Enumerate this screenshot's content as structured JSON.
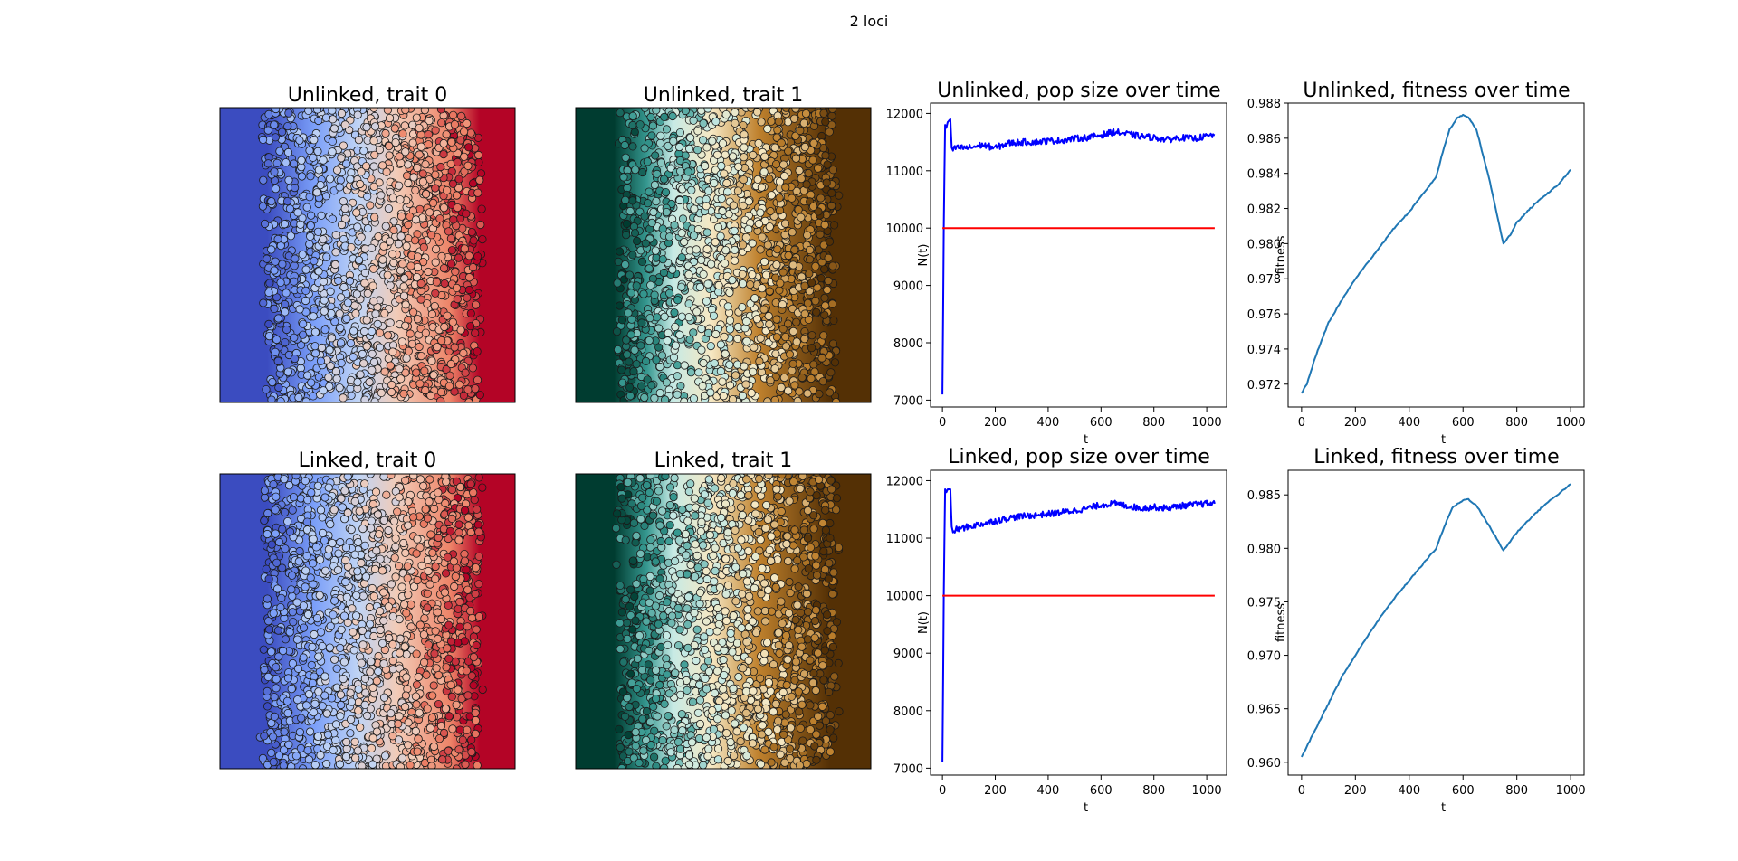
{
  "figure": {
    "suptitle": "2 loci"
  },
  "colors": {
    "coolwarm": [
      "#3b4cc0",
      "#7b9ff9",
      "#c0d4f5",
      "#f2cbb7",
      "#ee8468",
      "#b40426"
    ],
    "brbg": [
      "#003c30",
      "#35978f",
      "#c7eae5",
      "#f6e8c3",
      "#bf812d",
      "#543005"
    ],
    "pop_line": "#0000ff",
    "capacity_line": "#ff0000",
    "fitness_line": "#1f77b4"
  },
  "chart_data": [
    {
      "id": "unlinked-trait0",
      "type": "heatmap",
      "title": "Unlinked, trait 0",
      "colormap": "coolwarm",
      "xlabel": "",
      "ylabel": ""
    },
    {
      "id": "unlinked-trait1",
      "type": "heatmap",
      "title": "Unlinked, trait 1",
      "colormap": "brbg",
      "xlabel": "",
      "ylabel": ""
    },
    {
      "id": "unlinked-pop",
      "type": "line",
      "title": "Unlinked, pop size over time",
      "xlabel": "t",
      "ylabel": "N(t)",
      "xlim": [
        -45,
        1075
      ],
      "ylim": [
        6880,
        12180
      ],
      "xticks": [
        "0",
        "200",
        "400",
        "600",
        "800",
        "1000"
      ],
      "xtick_values": [
        0,
        200,
        400,
        600,
        800,
        1000
      ],
      "yticks": [
        "7000",
        "8000",
        "9000",
        "10000",
        "11000",
        "12000"
      ],
      "ytick_values": [
        7000,
        8000,
        9000,
        10000,
        11000,
        12000
      ],
      "series": [
        {
          "color": "#0000ff",
          "x": [
            0,
            5,
            10,
            15,
            20,
            30,
            35,
            40,
            50,
            100,
            150,
            200,
            250,
            300,
            350,
            400,
            450,
            500,
            550,
            600,
            650,
            700,
            750,
            800,
            850,
            900,
            950,
            1000,
            1030
          ],
          "y": [
            7100,
            10000,
            11800,
            11750,
            11850,
            11900,
            11400,
            11350,
            11400,
            11400,
            11450,
            11400,
            11480,
            11500,
            11500,
            11520,
            11530,
            11560,
            11580,
            11620,
            11680,
            11640,
            11600,
            11580,
            11540,
            11580,
            11560,
            11600,
            11620
          ]
        },
        {
          "color": "#ff0000",
          "x": [
            0,
            1030
          ],
          "y": [
            10000,
            10000
          ]
        }
      ]
    },
    {
      "id": "unlinked-fit",
      "type": "line",
      "title": "Unlinked, fitness over time",
      "xlabel": "t",
      "ylabel": "fitness",
      "xlim": [
        -50,
        1050
      ],
      "ylim": [
        0.9707,
        0.988
      ],
      "xticks": [
        "0",
        "200",
        "400",
        "600",
        "800",
        "1000"
      ],
      "xtick_values": [
        0,
        200,
        400,
        600,
        800,
        1000
      ],
      "yticks": [
        "0.972",
        "0.974",
        "0.976",
        "0.978",
        "0.980",
        "0.982",
        "0.984",
        "0.986",
        "0.988"
      ],
      "ytick_values": [
        0.972,
        0.974,
        0.976,
        0.978,
        0.98,
        0.982,
        0.984,
        0.986,
        0.988
      ],
      "series": [
        {
          "color": "#1f77b4",
          "x": [
            0,
            20,
            50,
            100,
            150,
            200,
            250,
            300,
            350,
            400,
            450,
            500,
            530,
            550,
            580,
            600,
            620,
            650,
            700,
            750,
            780,
            800,
            850,
            900,
            950,
            1000
          ],
          "y": [
            0.9715,
            0.972,
            0.9735,
            0.9755,
            0.9768,
            0.978,
            0.979,
            0.98,
            0.981,
            0.9818,
            0.9828,
            0.9838,
            0.9855,
            0.9865,
            0.9872,
            0.9873,
            0.9872,
            0.9865,
            0.9835,
            0.98,
            0.9806,
            0.9812,
            0.982,
            0.9827,
            0.9833,
            0.9842
          ]
        }
      ]
    },
    {
      "id": "linked-trait0",
      "type": "heatmap",
      "title": "Linked, trait 0",
      "colormap": "coolwarm",
      "xlabel": "",
      "ylabel": ""
    },
    {
      "id": "linked-trait1",
      "type": "heatmap",
      "title": "Linked, trait 1",
      "colormap": "brbg",
      "xlabel": "",
      "ylabel": ""
    },
    {
      "id": "linked-pop",
      "type": "line",
      "title": "Linked, pop size over time",
      "xlabel": "t",
      "ylabel": "N(t)",
      "xlim": [
        -45,
        1075
      ],
      "ylim": [
        6880,
        12180
      ],
      "xticks": [
        "0",
        "200",
        "400",
        "600",
        "800",
        "1000"
      ],
      "xtick_values": [
        0,
        200,
        400,
        600,
        800,
        1000
      ],
      "yticks": [
        "7000",
        "8000",
        "9000",
        "10000",
        "11000",
        "12000"
      ],
      "ytick_values": [
        7000,
        8000,
        9000,
        10000,
        11000,
        12000
      ],
      "series": [
        {
          "color": "#0000ff",
          "x": [
            0,
            5,
            10,
            15,
            20,
            30,
            35,
            40,
            50,
            100,
            150,
            200,
            250,
            300,
            350,
            400,
            450,
            500,
            550,
            600,
            650,
            700,
            750,
            800,
            850,
            900,
            950,
            1000,
            1030
          ],
          "y": [
            7100,
            10000,
            11850,
            11800,
            11850,
            11850,
            11200,
            11100,
            11150,
            11200,
            11250,
            11300,
            11350,
            11380,
            11400,
            11420,
            11450,
            11480,
            11520,
            11580,
            11600,
            11560,
            11520,
            11540,
            11520,
            11560,
            11580,
            11600,
            11600
          ]
        },
        {
          "color": "#ff0000",
          "x": [
            0,
            1030
          ],
          "y": [
            10000,
            10000
          ]
        }
      ]
    },
    {
      "id": "linked-fit",
      "type": "line",
      "title": "Linked, fitness over time",
      "xlabel": "t",
      "ylabel": "fitness",
      "xlim": [
        -50,
        1050
      ],
      "ylim": [
        0.9588,
        0.9873
      ],
      "xticks": [
        "0",
        "200",
        "400",
        "600",
        "800",
        "1000"
      ],
      "xtick_values": [
        0,
        200,
        400,
        600,
        800,
        1000
      ],
      "yticks": [
        "0.960",
        "0.965",
        "0.970",
        "0.975",
        "0.980",
        "0.985"
      ],
      "ytick_values": [
        0.96,
        0.965,
        0.97,
        0.975,
        0.98,
        0.985
      ],
      "series": [
        {
          "color": "#1f77b4",
          "x": [
            0,
            20,
            50,
            100,
            150,
            200,
            250,
            300,
            350,
            400,
            450,
            500,
            530,
            560,
            600,
            620,
            650,
            700,
            750,
            800,
            850,
            900,
            950,
            1000
          ],
          "y": [
            0.9605,
            0.9615,
            0.963,
            0.9655,
            0.968,
            0.97,
            0.972,
            0.9738,
            0.9755,
            0.977,
            0.9785,
            0.98,
            0.982,
            0.9838,
            0.9845,
            0.9846,
            0.984,
            0.982,
            0.9798,
            0.9815,
            0.9828,
            0.984,
            0.985,
            0.986
          ]
        }
      ]
    }
  ]
}
